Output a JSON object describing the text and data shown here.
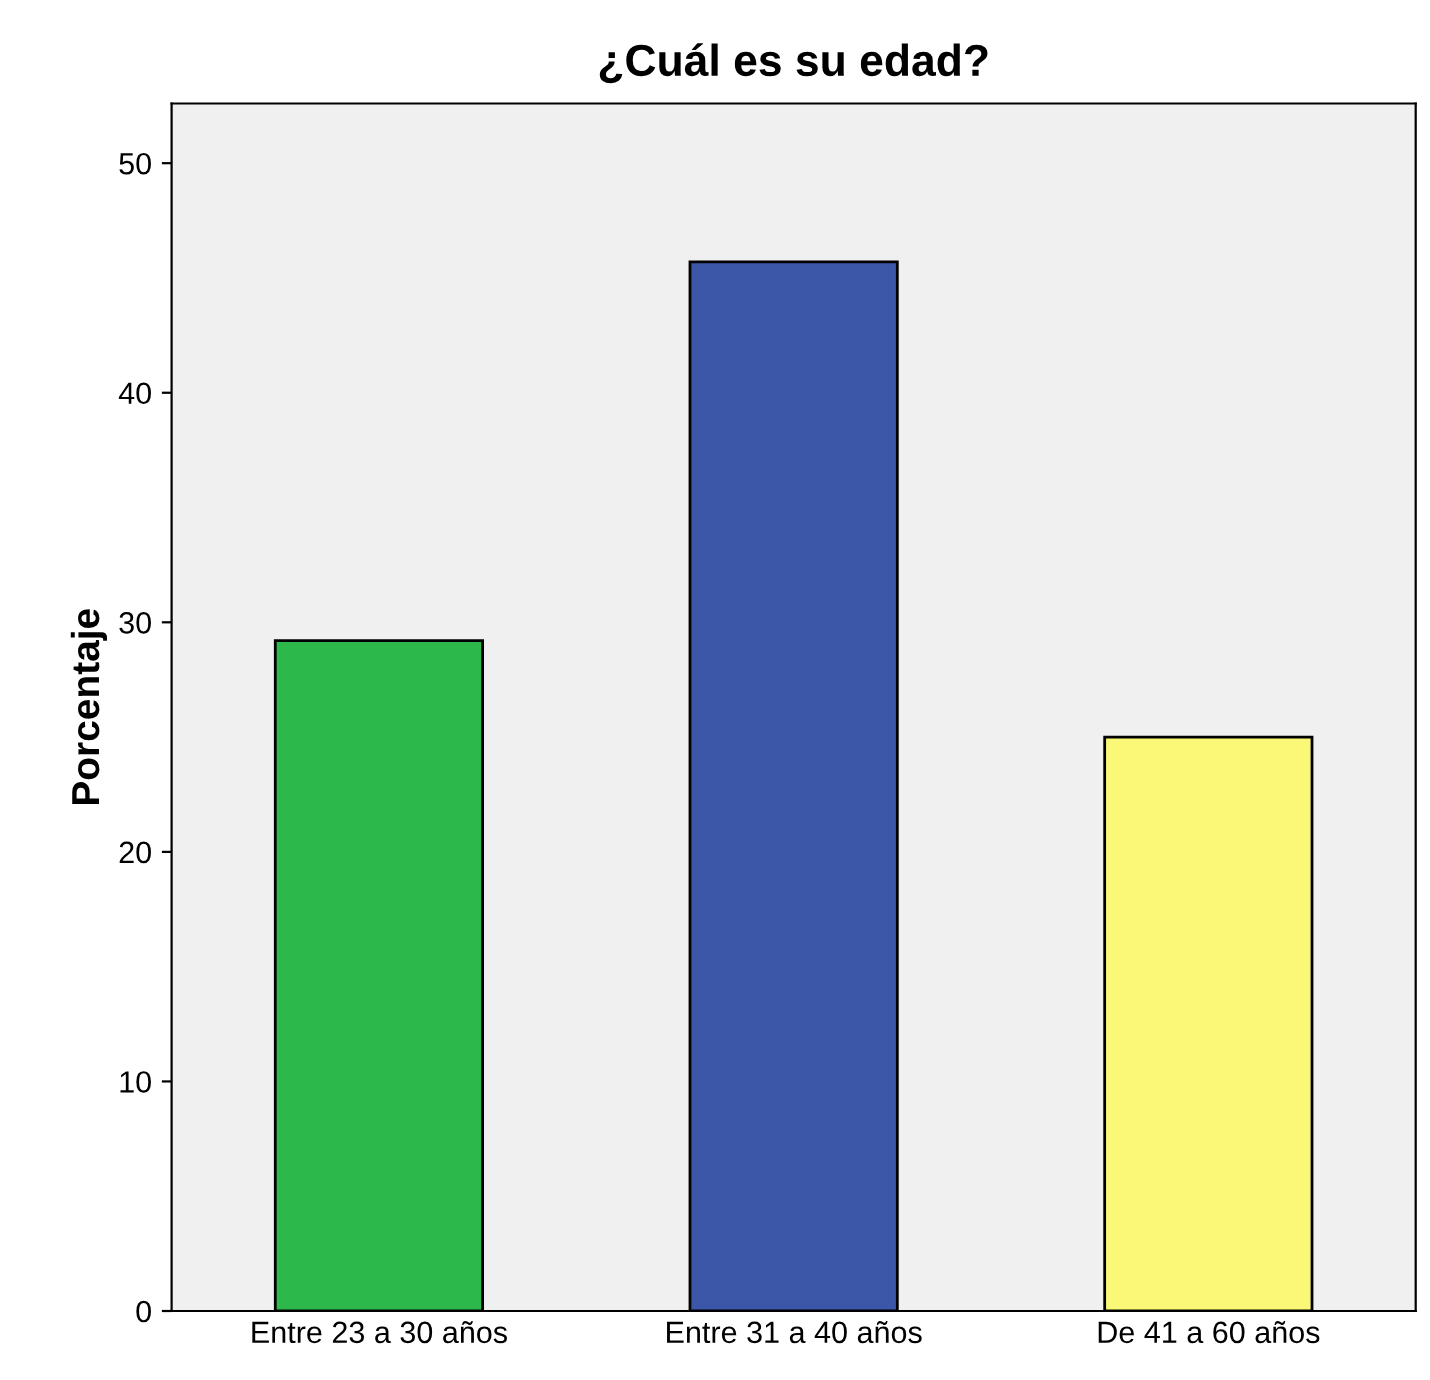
{
  "chart_data": {
    "type": "bar",
    "title": "¿Cuál es su edad?",
    "ylabel": "Porcentaje",
    "categories": [
      "Entre 23 a 30 años",
      "Entre 31 a 40 años",
      "De 41 a 60 años"
    ],
    "values": [
      29.2,
      45.7,
      25.0
    ],
    "colors": [
      "#2db84b",
      "#3d57a8",
      "#fbf877"
    ],
    "ylim": [
      0,
      52.6
    ],
    "yticks": [
      0,
      10,
      20,
      30,
      40,
      50
    ],
    "grid": false
  }
}
